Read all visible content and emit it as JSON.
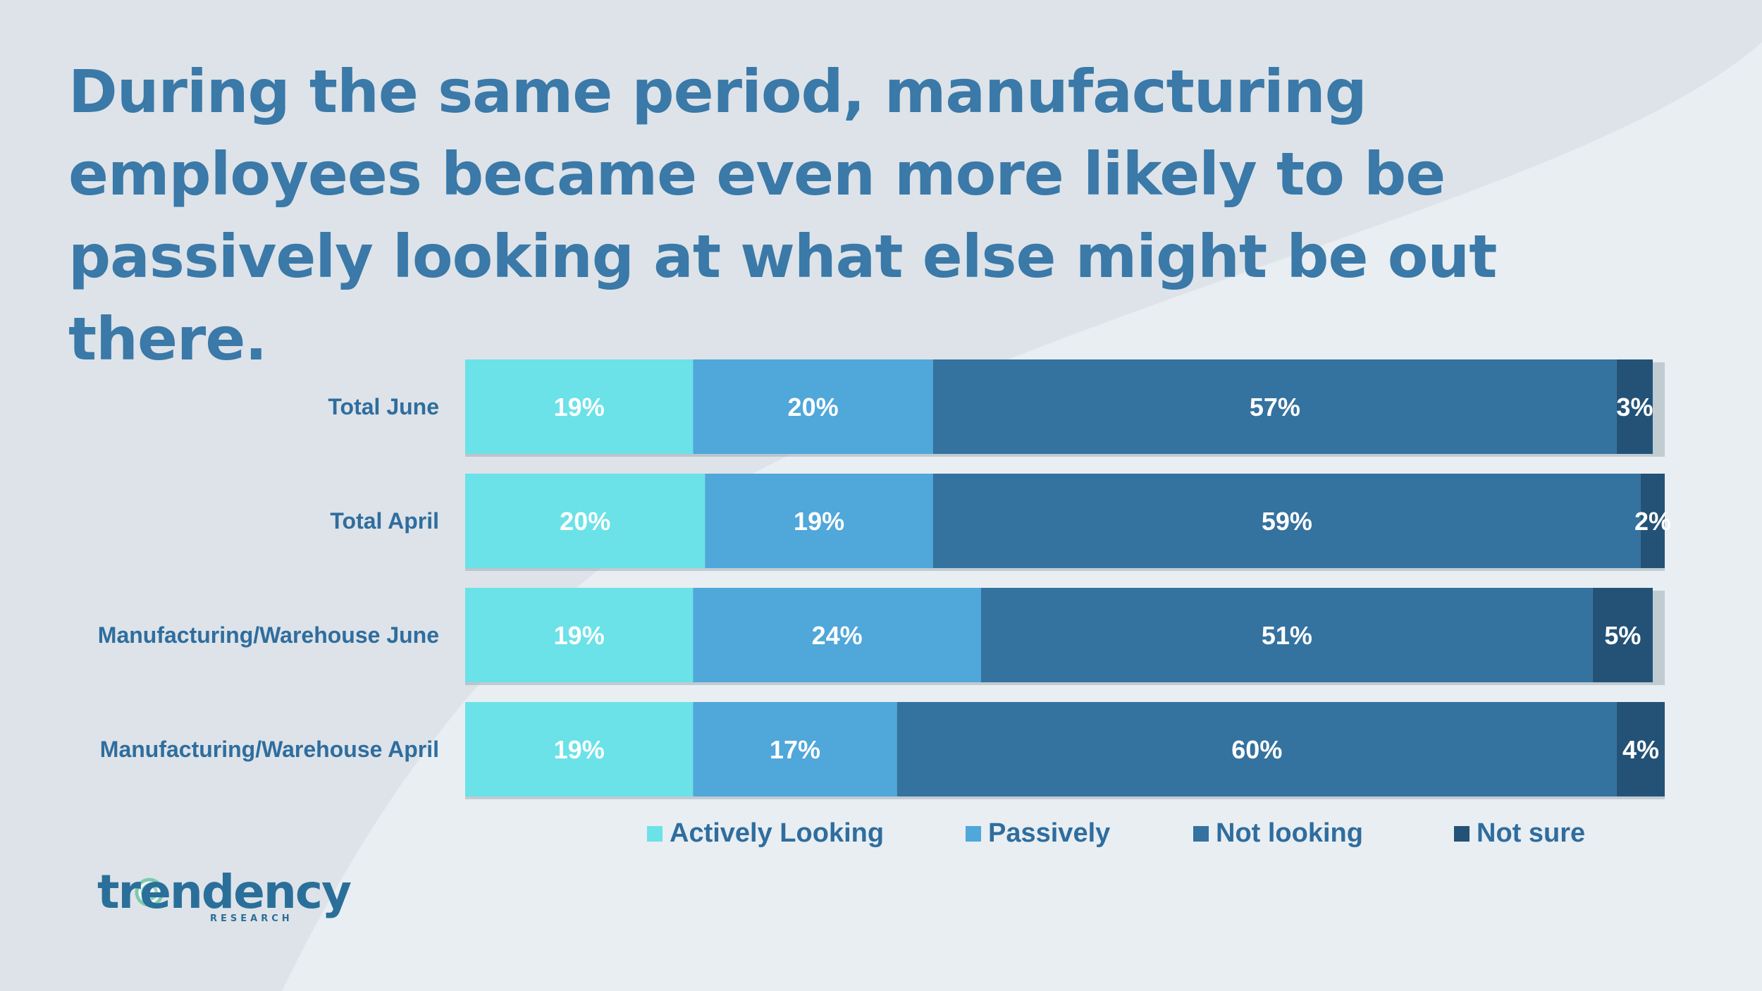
{
  "slide": {
    "title": "During the same period, manufacturing employees became even more likely to be passively looking at what else might be out there."
  },
  "logo": {
    "wordmark": "trendency",
    "subtitle": "RESEARCH",
    "registered": "®"
  },
  "colors": {
    "background": "#dde3e8",
    "background_shape": "#e9eef2",
    "title": "#3a79a8",
    "label": "#2f6d9e"
  },
  "chart_data": {
    "type": "bar",
    "orientation": "horizontal",
    "stacked": true,
    "categories": [
      "Total June",
      "Total April",
      "Manufacturing/Warehouse June",
      "Manufacturing/Warehouse April"
    ],
    "series": [
      {
        "name": "Actively Looking",
        "color": "#6ae2e8",
        "values": [
          19,
          20,
          19,
          19
        ],
        "labels": [
          "19%",
          "20%",
          "19%",
          "19%"
        ]
      },
      {
        "name": "Passively",
        "color": "#4fa7da",
        "values": [
          20,
          19,
          24,
          17
        ],
        "labels": [
          "20%",
          "19%",
          "24%",
          "17%"
        ]
      },
      {
        "name": "Not looking",
        "color": "#34729f",
        "values": [
          57,
          59,
          51,
          60
        ],
        "labels": [
          "57%",
          "59%",
          "51%",
          "60%"
        ]
      },
      {
        "name": "Not sure",
        "color": "#235276",
        "values": [
          3,
          2,
          5,
          4
        ],
        "labels": [
          "3%",
          "2%",
          "5%",
          "4%"
        ]
      }
    ],
    "xlim": [
      0,
      100
    ],
    "unit": "%",
    "grid": false,
    "legend_position": "bottom"
  }
}
